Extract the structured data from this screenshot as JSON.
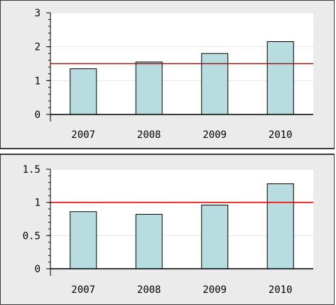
{
  "colors": {
    "bar_fill": "#b8dde0",
    "bar_stroke": "#000000",
    "reference_line": "#cc0000",
    "grid": "#e6e6e6",
    "plot_bg": "#ffffff",
    "panel_bg": "#ebebeb"
  },
  "chart_data": [
    {
      "type": "bar",
      "categories": [
        "2007",
        "2008",
        "2009",
        "2010"
      ],
      "values": [
        1.35,
        1.55,
        1.8,
        2.15
      ],
      "reference_line": 1.5,
      "ylim": [
        0,
        3
      ],
      "yticks": [
        0,
        1,
        2,
        3
      ],
      "ytick_labels": [
        "0",
        "1",
        "2",
        "3"
      ],
      "grid": true,
      "title": "",
      "xlabel": "",
      "ylabel": ""
    },
    {
      "type": "bar",
      "categories": [
        "2007",
        "2008",
        "2009",
        "2010"
      ],
      "values": [
        0.86,
        0.82,
        0.96,
        1.28
      ],
      "reference_line": 1.0,
      "ylim": [
        0,
        1.5
      ],
      "yticks": [
        0,
        0.5,
        1,
        1.5
      ],
      "ytick_labels": [
        "0",
        "0.5",
        "1",
        "1.5"
      ],
      "grid": true,
      "title": "",
      "xlabel": "",
      "ylabel": ""
    }
  ]
}
